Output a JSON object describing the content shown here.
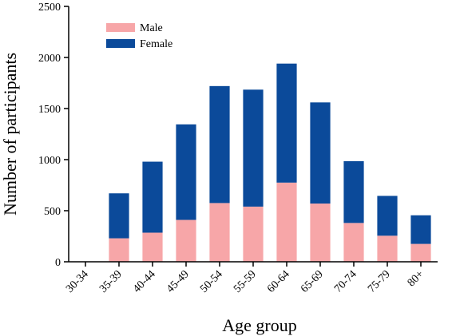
{
  "chart_data": {
    "type": "bar",
    "stacked": true,
    "categories": [
      "30-34",
      "35-39",
      "40-44",
      "45-49",
      "50-54",
      "55-59",
      "60-64",
      "65-69",
      "70-74",
      "75-79",
      "80+"
    ],
    "series": [
      {
        "name": "Male",
        "color": "#F7A6A8",
        "values": [
          0,
          230,
          285,
          410,
          575,
          540,
          775,
          570,
          380,
          255,
          175
        ]
      },
      {
        "name": "Female",
        "color": "#0B4A9A",
        "values": [
          0,
          440,
          695,
          935,
          1145,
          1145,
          1165,
          990,
          605,
          390,
          280
        ]
      }
    ],
    "xlabel": "Age group",
    "ylabel": "Number of participants",
    "ylim": [
      0,
      2500
    ],
    "yticks": [
      "0",
      "500",
      "1000",
      "1500",
      "2000",
      "2500"
    ],
    "grid": false,
    "legend_position": "top-left"
  }
}
